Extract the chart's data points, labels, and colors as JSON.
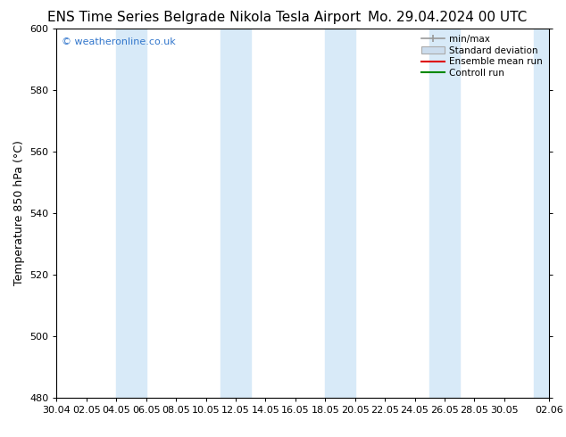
{
  "title_left": "ENS Time Series Belgrade Nikola Tesla Airport",
  "title_right": "Mo. 29.04.2024 00 UTC",
  "ylabel": "Temperature 850 hPa (°C)",
  "ylim": [
    480,
    600
  ],
  "yticks": [
    480,
    500,
    520,
    540,
    560,
    580,
    600
  ],
  "xtick_labels": [
    "30.04",
    "02.05",
    "04.05",
    "06.05",
    "08.05",
    "10.05",
    "12.05",
    "14.05",
    "16.05",
    "18.05",
    "20.05",
    "22.05",
    "24.05",
    "26.05",
    "28.05",
    "30.05",
    "02.06"
  ],
  "xtick_positions": [
    0,
    2,
    4,
    6,
    8,
    10,
    12,
    14,
    16,
    18,
    20,
    22,
    24,
    26,
    28,
    30,
    33
  ],
  "shade_ranges": [
    [
      4,
      6
    ],
    [
      11,
      13
    ],
    [
      18,
      20
    ],
    [
      25,
      27
    ],
    [
      32,
      34
    ]
  ],
  "watermark": "© weatheronline.co.uk",
  "watermark_color": "#3377cc",
  "background_color": "#ffffff",
  "shade_color": "#d8eaf8",
  "legend_minmax_color": "#999999",
  "legend_stddev_facecolor": "#ccddee",
  "legend_stddev_edgecolor": "#aaaaaa",
  "legend_ensemble_color": "#dd0000",
  "legend_control_color": "#008800",
  "title_fontsize": 11,
  "label_fontsize": 9,
  "tick_fontsize": 8,
  "xmin": 0,
  "xmax": 33
}
